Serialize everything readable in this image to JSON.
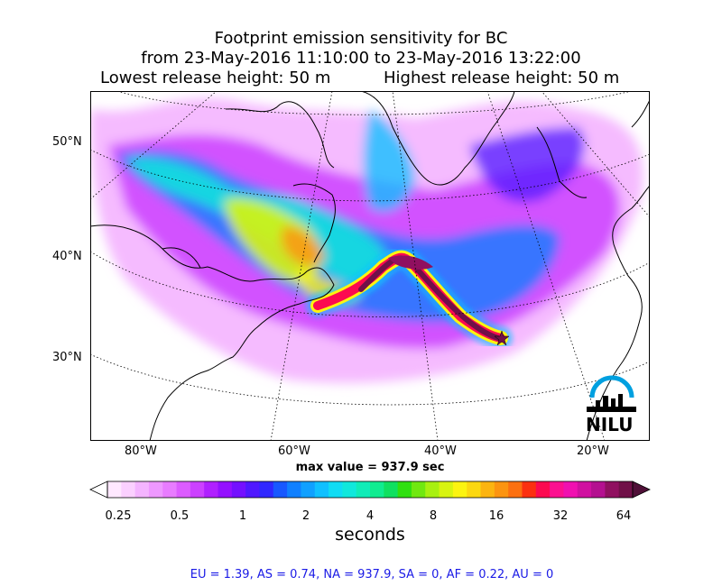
{
  "title": {
    "line1": "Footprint emission sensitivity for BC",
    "line2": "from 23-May-2016 11:10:00 to 23-May-2016 13:22:00",
    "lowest": "Lowest release height: 50 m",
    "highest": "Highest release height: 50 m"
  },
  "map": {
    "lat_labels": [
      "50°N",
      "40°N",
      "30°N"
    ],
    "lon_labels": [
      "80°W",
      "60°W",
      "40°W",
      "20°W"
    ],
    "logo_text": "NILU",
    "release_marker": "star",
    "max_value": "max value = 937.9 sec"
  },
  "colorbar": {
    "ticks": [
      "0.25",
      "0.5",
      "1",
      "2",
      "4",
      "8",
      "16",
      "32",
      "64"
    ],
    "units": "seconds",
    "colors": [
      "#ffe8ff",
      "#fbd0ff",
      "#f4b4ff",
      "#ee98ff",
      "#e87cff",
      "#dc5cff",
      "#cc40ff",
      "#b020ff",
      "#9410ff",
      "#7410ff",
      "#5018ff",
      "#3028ff",
      "#1858ff",
      "#1080ff",
      "#10a0ff",
      "#10c0ff",
      "#10dcf4",
      "#10e8dc",
      "#10ecb8",
      "#10ec90",
      "#10e060",
      "#30e010",
      "#70e810",
      "#a8f010",
      "#d8f410",
      "#fcf410",
      "#fcd810",
      "#fcb410",
      "#fc9410",
      "#fc7010",
      "#fc3010",
      "#fc0a50",
      "#fc1090",
      "#f010b0",
      "#d010a0",
      "#b41090",
      "#901060",
      "#701048"
    ]
  },
  "summary": "EU = 1.39,  AS = 0.74,  NA = 937.9,  SA = 0,  AF = 0.22,  AU = 0"
}
